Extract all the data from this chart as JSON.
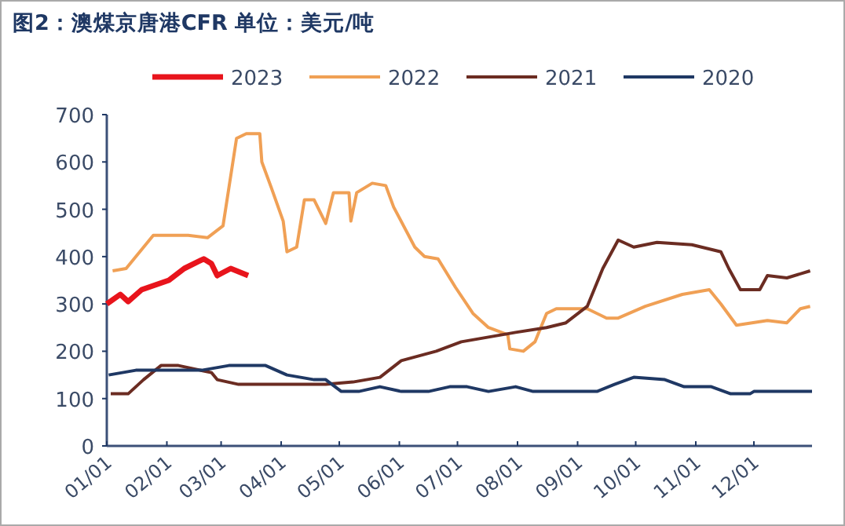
{
  "chart_data": {
    "type": "line",
    "title": "图2：澳煤京唐港CFR  单位：美元/吨",
    "xlim": [
      "--01-01",
      "--12-31"
    ],
    "xticks": [
      {
        "value": "--01-01",
        "label": "01/01"
      },
      {
        "value": "--02-01",
        "label": "02/01"
      },
      {
        "value": "--03-01",
        "label": "03/01"
      },
      {
        "value": "--04-01",
        "label": "04/01"
      },
      {
        "value": "--05-01",
        "label": "05/01"
      },
      {
        "value": "--06-01",
        "label": "06/01"
      },
      {
        "value": "--07-01",
        "label": "07/01"
      },
      {
        "value": "--08-01",
        "label": "08/01"
      },
      {
        "value": "--09-01",
        "label": "09/01"
      },
      {
        "value": "--10-01",
        "label": "10/01"
      },
      {
        "value": "--11-01",
        "label": "11/01"
      },
      {
        "value": "--12-01",
        "label": "12/01"
      }
    ],
    "ylim": [
      0,
      700
    ],
    "yticks": [
      0,
      100,
      200,
      300,
      400,
      500,
      600,
      700
    ],
    "legend": "top",
    "grid": false,
    "marker": "none",
    "series": [
      {
        "name": "2023",
        "color": "#e8141c",
        "x": [
          "--01-01",
          "--01-08",
          "--01-12",
          "--01-19",
          "--02-02",
          "--02-10",
          "--02-20",
          "--02-24",
          "--02-27",
          "--03-06",
          "--03-15"
        ],
        "values": [
          300,
          320,
          305,
          330,
          350,
          375,
          395,
          385,
          360,
          375,
          360
        ]
      },
      {
        "name": "2022",
        "color": "#f0a055",
        "x": [
          "--01-04",
          "--01-11",
          "--01-25",
          "--02-12",
          "--02-22",
          "--03-02",
          "--03-09",
          "--03-14",
          "--03-21",
          "--03-22",
          "--03-27",
          "--04-02",
          "--04-04",
          "--04-09",
          "--04-13",
          "--04-18",
          "--04-24",
          "--04-28",
          "--05-06",
          "--05-07",
          "--05-10",
          "--05-18",
          "--05-25",
          "--05-29",
          "--06-09",
          "--06-14",
          "--06-21",
          "--06-30",
          "--07-09",
          "--07-17",
          "--07-27",
          "--07-28",
          "--08-04",
          "--08-10",
          "--08-16",
          "--08-21",
          "--09-06",
          "--09-16",
          "--09-22",
          "--10-06",
          "--10-25",
          "--11-08",
          "--11-14",
          "--11-22",
          "--12-08",
          "--12-18",
          "--12-25",
          "--12-30"
        ],
        "values": [
          370,
          375,
          445,
          445,
          440,
          465,
          650,
          660,
          660,
          600,
          545,
          475,
          410,
          420,
          520,
          520,
          470,
          535,
          535,
          475,
          535,
          555,
          550,
          505,
          420,
          400,
          395,
          335,
          280,
          250,
          235,
          205,
          200,
          220,
          280,
          290,
          290,
          270,
          270,
          295,
          320,
          330,
          300,
          255,
          265,
          260,
          290,
          295
        ]
      },
      {
        "name": "2021",
        "color": "#6b2c22",
        "x": [
          "--01-03",
          "--01-12",
          "--01-20",
          "--01-29",
          "--02-07",
          "--02-24",
          "--02-27",
          "--03-10",
          "--04-09",
          "--04-24",
          "--05-08",
          "--05-22",
          "--06-02",
          "--06-20",
          "--07-03",
          "--07-31",
          "--08-16",
          "--08-26",
          "--09-06",
          "--09-14",
          "--09-22",
          "--09-30",
          "--10-12",
          "--10-30",
          "--11-14",
          "--11-18",
          "--11-24",
          "--12-04",
          "--12-08",
          "--12-18",
          "--12-30"
        ],
        "values": [
          110,
          110,
          140,
          170,
          170,
          155,
          140,
          130,
          130,
          130,
          135,
          145,
          180,
          200,
          220,
          240,
          250,
          260,
          295,
          375,
          435,
          420,
          430,
          425,
          410,
          375,
          330,
          330,
          360,
          355,
          370
        ]
      },
      {
        "name": "2020",
        "color": "#1f3864",
        "x": [
          "--01-02",
          "--01-16",
          "--02-19",
          "--03-05",
          "--03-24",
          "--04-04",
          "--04-18",
          "--04-24",
          "--05-02",
          "--05-11",
          "--05-22",
          "--06-02",
          "--06-16",
          "--06-27",
          "--07-06",
          "--07-17",
          "--07-31",
          "--08-09",
          "--09-11",
          "--09-20",
          "--09-30",
          "--10-16",
          "--10-26",
          "--11-09",
          "--11-19",
          "--11-29",
          "--12-01",
          "--12-31"
        ],
        "values": [
          150,
          160,
          160,
          170,
          170,
          150,
          140,
          140,
          115,
          115,
          125,
          115,
          115,
          125,
          125,
          115,
          125,
          115,
          115,
          130,
          145,
          140,
          125,
          125,
          110,
          110,
          115,
          115
        ]
      }
    ]
  }
}
